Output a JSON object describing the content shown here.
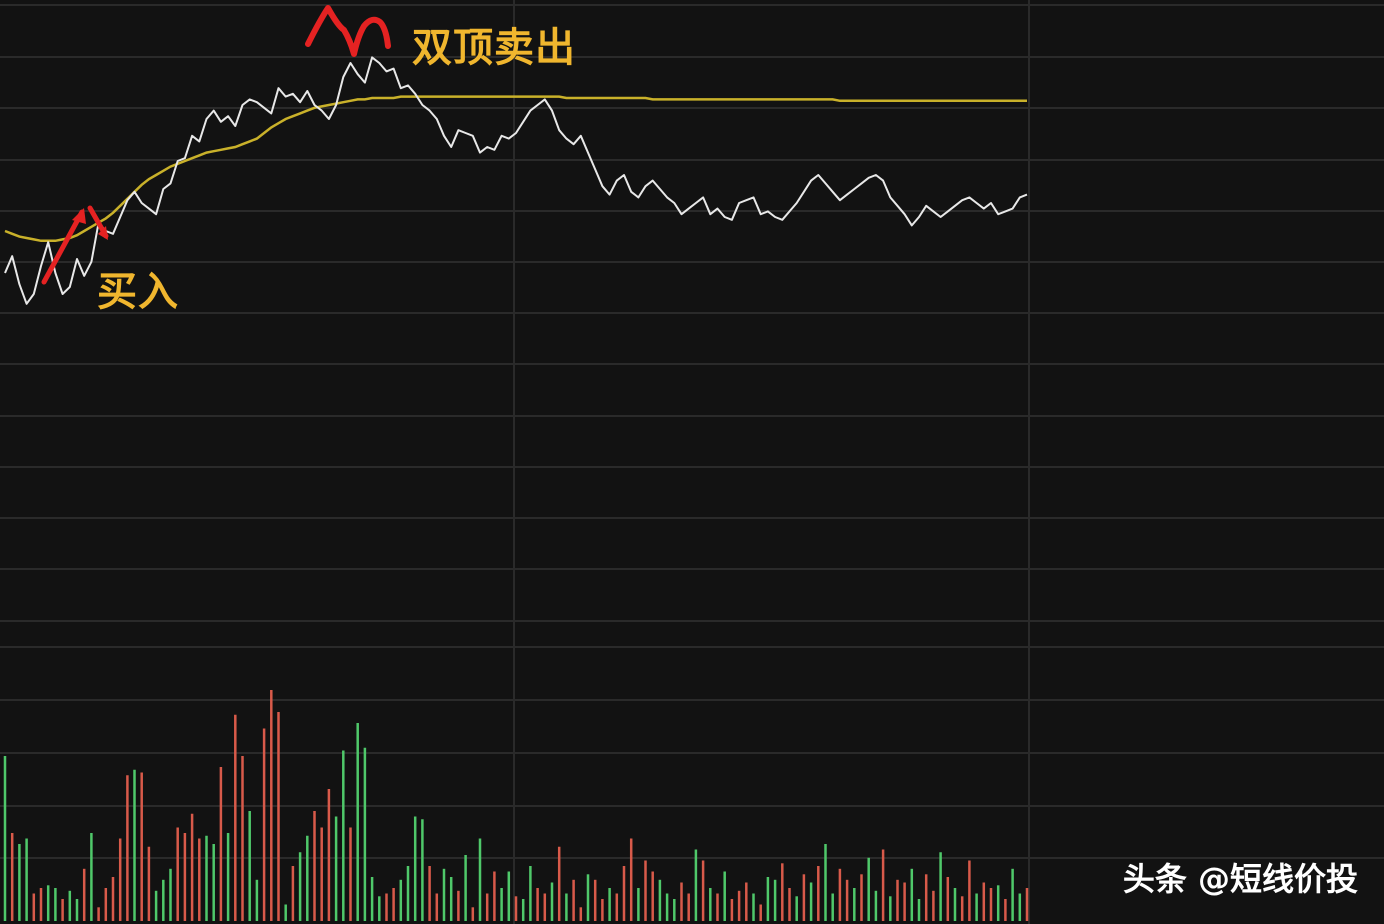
{
  "chart_data": {
    "type": "line",
    "grid": true,
    "annotations": {
      "buy": "买入",
      "sell": "双顶卖出"
    },
    "price_series": {
      "price": [
        30,
        42,
        22,
        8,
        15,
        35,
        52,
        30,
        15,
        20,
        40,
        28,
        38,
        66,
        60,
        58,
        70,
        82,
        88,
        80,
        76,
        72,
        90,
        94,
        110,
        112,
        128,
        124,
        140,
        146,
        138,
        142,
        135,
        150,
        154,
        152,
        148,
        144,
        162,
        156,
        158,
        152,
        160,
        150,
        146,
        140,
        150,
        170,
        180,
        172,
        166,
        184,
        180,
        174,
        176,
        162,
        164,
        158,
        150,
        146,
        140,
        128,
        120,
        132,
        130,
        128,
        116,
        120,
        118,
        128,
        126,
        130,
        138,
        146,
        150,
        154,
        146,
        132,
        126,
        122,
        128,
        116,
        104,
        92,
        86,
        96,
        100,
        88,
        84,
        92,
        96,
        90,
        84,
        80,
        72,
        76,
        80,
        84,
        72,
        76,
        70,
        68,
        80,
        82,
        84,
        72,
        74,
        70,
        68,
        74,
        80,
        88,
        96,
        100,
        94,
        88,
        82,
        86,
        90,
        94,
        98,
        100,
        96,
        84,
        78,
        72,
        64,
        70,
        78,
        74,
        70,
        74,
        78,
        82,
        84,
        80,
        76,
        80,
        72,
        74,
        76,
        84,
        86
      ],
      "avg": [
        60,
        58,
        56,
        55,
        54,
        53,
        53,
        53,
        54,
        55,
        57,
        60,
        63,
        66,
        69,
        73,
        78,
        83,
        88,
        93,
        97,
        100,
        103,
        106,
        108,
        110,
        112,
        114,
        116,
        117,
        118,
        119,
        120,
        122,
        124,
        126,
        130,
        134,
        137,
        140,
        142,
        144,
        146,
        148,
        149,
        150,
        151,
        152,
        153,
        154,
        154,
        155,
        155,
        155,
        155,
        156,
        156,
        156,
        156,
        156,
        156,
        156,
        156,
        156,
        156,
        156,
        156,
        156,
        156,
        156,
        156,
        156,
        156,
        156,
        156,
        156,
        156,
        156,
        155,
        155,
        155,
        155,
        155,
        155,
        155,
        155,
        155,
        155,
        155,
        155,
        154,
        154,
        154,
        154,
        154,
        154,
        154,
        154,
        154,
        154,
        154,
        154,
        154,
        154,
        154,
        154,
        154,
        154,
        154,
        154,
        154,
        154,
        154,
        154,
        154,
        154,
        153,
        153,
        153,
        153,
        153,
        153,
        153,
        153,
        153,
        153,
        153,
        153,
        153,
        153,
        153,
        153,
        153,
        153,
        153,
        153,
        153,
        153,
        153,
        153,
        153,
        153,
        153
      ],
      "ylim": [
        0,
        225
      ]
    },
    "volume_series": {
      "values": [
        60,
        32,
        28,
        30,
        10,
        12,
        13,
        12,
        8,
        11,
        8,
        19,
        32,
        5,
        12,
        16,
        30,
        53,
        55,
        54,
        27,
        11,
        15,
        19,
        34,
        32,
        39,
        30,
        31,
        28,
        56,
        32,
        75,
        60,
        40,
        15,
        70,
        84,
        76,
        6,
        20,
        25,
        31,
        40,
        34,
        48,
        38,
        62,
        34,
        72,
        63,
        16,
        9,
        10,
        12,
        15,
        20,
        38,
        37,
        20,
        10,
        19,
        16,
        11,
        24,
        5,
        30,
        10,
        18,
        12,
        18,
        9,
        8,
        20,
        12,
        10,
        14,
        27,
        10,
        15,
        5,
        17,
        15,
        8,
        12,
        10,
        20,
        30,
        12,
        22,
        18,
        15,
        10,
        8,
        14,
        10,
        26,
        22,
        12,
        10,
        18,
        8,
        11,
        14,
        10,
        6,
        16,
        15,
        21,
        12,
        9,
        17,
        14,
        20,
        28,
        10,
        19,
        15,
        12,
        17,
        23,
        11,
        26,
        9,
        15,
        14,
        19,
        8,
        17,
        11,
        25,
        16,
        12,
        9,
        22,
        10,
        14,
        12,
        13,
        8,
        19,
        10,
        12
      ],
      "colors": [
        "g",
        "r",
        "g",
        "g",
        "r",
        "r",
        "g",
        "g",
        "r",
        "g",
        "g",
        "r",
        "g",
        "r",
        "r",
        "r",
        "r",
        "r",
        "g",
        "r",
        "r",
        "g",
        "g",
        "g",
        "r",
        "r",
        "r",
        "r",
        "g",
        "g",
        "r",
        "g",
        "r",
        "r",
        "g",
        "g",
        "r",
        "r",
        "r",
        "g",
        "r",
        "g",
        "g",
        "r",
        "r",
        "r",
        "g",
        "g",
        "r",
        "g",
        "g",
        "g",
        "g",
        "r",
        "r",
        "g",
        "g",
        "g",
        "g",
        "r",
        "r",
        "g",
        "g",
        "r",
        "g",
        "r",
        "g",
        "r",
        "r",
        "g",
        "g",
        "r",
        "g",
        "g",
        "r",
        "r",
        "g",
        "r",
        "g",
        "r",
        "r",
        "g",
        "r",
        "r",
        "g",
        "r",
        "r",
        "r",
        "g",
        "r",
        "r",
        "g",
        "g",
        "g",
        "r",
        "r",
        "g",
        "r",
        "g",
        "r",
        "g",
        "r",
        "r",
        "r",
        "g",
        "r",
        "g",
        "g",
        "r",
        "r",
        "g",
        "r",
        "g",
        "r",
        "g",
        "g",
        "r",
        "r",
        "g",
        "r",
        "g",
        "g",
        "r",
        "g",
        "r",
        "r",
        "g",
        "g",
        "r",
        "r",
        "g",
        "r",
        "g",
        "r",
        "r",
        "g",
        "r",
        "r",
        "g",
        "r",
        "g",
        "g",
        "r"
      ]
    }
  },
  "colors": {
    "background": "#121212",
    "grid": "#2a2a2a",
    "price_line": "#e8e8e8",
    "avg_line": "#c9b12a",
    "volume_red": "#d85a4a",
    "volume_green": "#4fc86a",
    "arrow": "#e52222",
    "annotation_text": "#f0b62e"
  },
  "watermark": "头条 @短线价投"
}
